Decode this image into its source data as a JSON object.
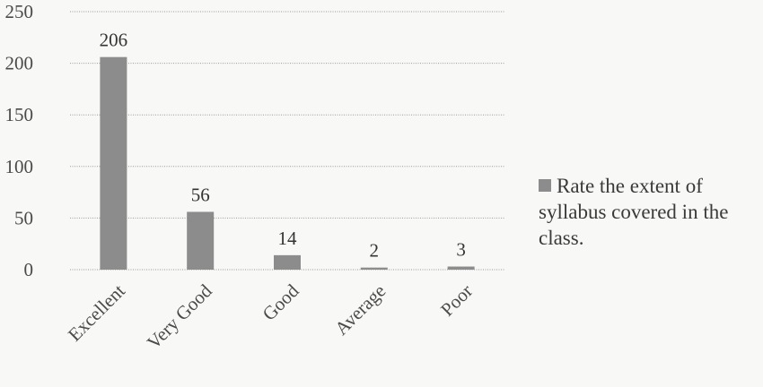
{
  "chart_data": {
    "type": "bar",
    "categories": [
      "Excellent",
      "Very Good",
      "Good",
      "Average",
      "Poor"
    ],
    "series": [
      {
        "name": "Rate the extent of syllabus covered in the class.",
        "values": [
          206,
          56,
          14,
          2,
          3
        ],
        "color": "#8c8c8c"
      }
    ],
    "data_labels": [
      "206",
      "56",
      "14",
      "2",
      "3"
    ],
    "y_ticks": [
      "0",
      "50",
      "100",
      "150",
      "200",
      "250"
    ],
    "ylim": [
      0,
      250
    ],
    "grid": true,
    "legend_position": "right",
    "title": "",
    "xlabel": "",
    "ylabel": ""
  }
}
